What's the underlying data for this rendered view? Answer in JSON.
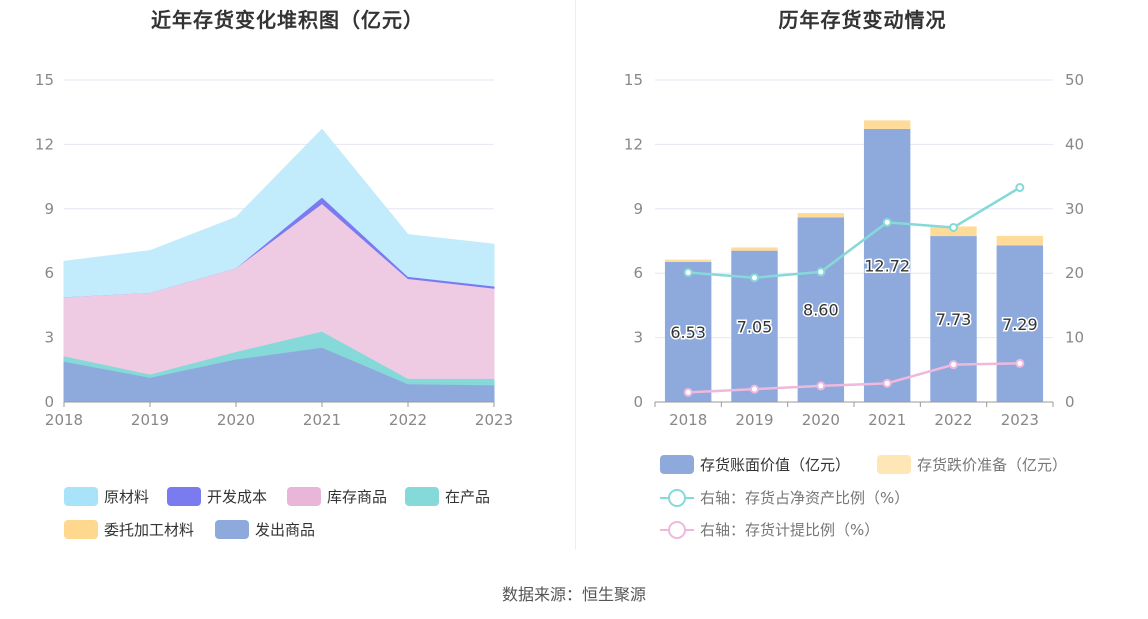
{
  "left_chart": {
    "title": "近年存货变化堆积图（亿元）",
    "chart_data": {
      "type": "area",
      "stacked": true,
      "x": [
        "2018",
        "2019",
        "2020",
        "2021",
        "2022",
        "2023"
      ],
      "ylim": [
        0,
        15
      ],
      "yticks": [
        "0",
        "3",
        "6",
        "9",
        "12",
        "15"
      ],
      "grid": true,
      "legend_position": "bottom",
      "series": [
        {
          "name": "发出商品",
          "color": "#8eaadc",
          "values": [
            1.9,
            1.15,
            2.0,
            2.55,
            0.85,
            0.8
          ]
        },
        {
          "name": "委托加工材料",
          "color": "#ffd88f",
          "values": [
            0.0,
            0.0,
            0.0,
            0.0,
            0.0,
            0.0
          ]
        },
        {
          "name": "在产品",
          "color": "#86d9d9",
          "values": [
            0.25,
            0.15,
            0.35,
            0.75,
            0.25,
            0.3
          ]
        },
        {
          "name": "库存商品",
          "color": "#efcbe3",
          "values": [
            2.75,
            3.8,
            3.9,
            5.95,
            4.65,
            4.2
          ]
        },
        {
          "name": "开发成本",
          "color": "#7b7bf0",
          "values": [
            0.0,
            0.0,
            0.0,
            0.3,
            0.1,
            0.1
          ]
        },
        {
          "name": "原材料",
          "color": "#c2ebfb",
          "values": [
            1.65,
            1.95,
            2.35,
            3.15,
            1.95,
            1.95
          ]
        }
      ]
    },
    "legend": [
      {
        "label": "原材料",
        "color": "#a9e3fa"
      },
      {
        "label": "开发成本",
        "color": "#7b7bf0"
      },
      {
        "label": "库存商品",
        "color": "#e9b6d9"
      },
      {
        "label": "在产品",
        "color": "#86d9d9"
      },
      {
        "label": "委托加工材料",
        "color": "#ffd88f"
      },
      {
        "label": "发出商品",
        "color": "#8eaadc"
      }
    ]
  },
  "right_chart": {
    "title": "历年存货变动情况",
    "chart_data": {
      "type": "bar",
      "stacked": true,
      "categories": [
        "2018",
        "2019",
        "2020",
        "2021",
        "2022",
        "2023"
      ],
      "ylim": [
        0,
        15
      ],
      "yticks": [
        "0",
        "3",
        "6",
        "9",
        "12",
        "15"
      ],
      "y2lim": [
        0,
        50
      ],
      "y2ticks": [
        "0",
        "10",
        "20",
        "30",
        "40",
        "50"
      ],
      "grid": true,
      "legend_position": "bottom",
      "series": [
        {
          "name": "存货账面价值（亿元）",
          "type": "bar",
          "axis": "left",
          "color": "#8eaadc",
          "values": [
            6.53,
            7.05,
            8.6,
            12.72,
            7.73,
            7.29
          ],
          "labels": [
            "6.53",
            "7.05",
            "8.60",
            "12.72",
            "7.73",
            "7.29"
          ]
        },
        {
          "name": "存货跌价准备（亿元）",
          "type": "bar",
          "axis": "left",
          "color": "#ffdb99",
          "values": [
            0.1,
            0.15,
            0.2,
            0.4,
            0.45,
            0.45
          ]
        },
        {
          "name": "右轴：存货占净资产比例（%）",
          "type": "line",
          "axis": "right",
          "color": "#86d9d9",
          "values": [
            20.1,
            19.3,
            20.2,
            27.9,
            27.1,
            33.3
          ]
        },
        {
          "name": "右轴：存货计提比例（%）",
          "type": "line",
          "axis": "right",
          "color": "#efb8dc",
          "values": [
            1.5,
            2.0,
            2.5,
            2.9,
            5.8,
            6.0
          ]
        }
      ]
    }
  },
  "source": "数据来源：恒生聚源"
}
